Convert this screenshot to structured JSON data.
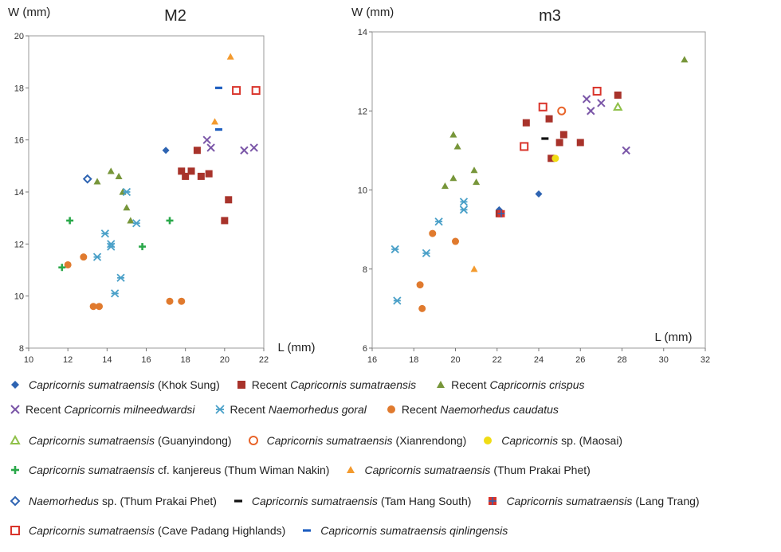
{
  "chart_data": [
    {
      "type": "scatter",
      "title": "M2",
      "ylabel": "W (mm)",
      "xlabel": "L (mm)",
      "xlim": [
        10,
        22
      ],
      "ylim": [
        8,
        20
      ],
      "xticks": [
        10,
        12,
        14,
        16,
        18,
        20,
        22
      ],
      "yticks": [
        8,
        10,
        12,
        14,
        16,
        18,
        20
      ],
      "series": [
        {
          "key": "khok",
          "points": [
            [
              17.0,
              15.6
            ]
          ]
        },
        {
          "key": "rec_csum",
          "points": [
            [
              17.8,
              14.8
            ],
            [
              18.0,
              14.6
            ],
            [
              18.3,
              14.8
            ],
            [
              18.6,
              15.6
            ],
            [
              18.8,
              14.6
            ],
            [
              19.2,
              14.7
            ],
            [
              20.2,
              13.7
            ],
            [
              20.0,
              12.9
            ]
          ]
        },
        {
          "key": "rec_cris",
          "points": [
            [
              13.5,
              14.4
            ],
            [
              14.2,
              14.8
            ],
            [
              14.6,
              14.6
            ],
            [
              14.8,
              14.0
            ],
            [
              15.0,
              13.4
            ],
            [
              15.2,
              12.9
            ]
          ]
        },
        {
          "key": "rec_miln",
          "points": [
            [
              19.1,
              16.0
            ],
            [
              19.3,
              15.7
            ],
            [
              21.0,
              15.6
            ],
            [
              21.5,
              15.7
            ]
          ]
        },
        {
          "key": "rec_goral",
          "points": [
            [
              13.5,
              11.5
            ],
            [
              13.9,
              12.4
            ],
            [
              14.2,
              12.0
            ],
            [
              14.2,
              11.9
            ],
            [
              14.4,
              10.1
            ],
            [
              14.7,
              10.7
            ],
            [
              15.0,
              14.0
            ],
            [
              15.5,
              12.8
            ]
          ]
        },
        {
          "key": "rec_caud",
          "points": [
            [
              12.0,
              11.2
            ],
            [
              12.8,
              11.5
            ],
            [
              13.3,
              9.6
            ],
            [
              13.6,
              9.6
            ],
            [
              17.2,
              9.8
            ],
            [
              17.8,
              9.8
            ]
          ]
        },
        {
          "key": "guany",
          "points": []
        },
        {
          "key": "xian",
          "points": []
        },
        {
          "key": "maosai",
          "points": []
        },
        {
          "key": "wiman",
          "points": [
            [
              11.7,
              11.1
            ],
            [
              12.1,
              12.9
            ],
            [
              15.8,
              11.9
            ],
            [
              17.2,
              12.9
            ]
          ]
        },
        {
          "key": "prakai",
          "points": [
            [
              19.5,
              16.7
            ],
            [
              20.3,
              19.2
            ]
          ]
        },
        {
          "key": "naem_sp",
          "points": [
            [
              13.0,
              14.5
            ]
          ]
        },
        {
          "key": "tamhang",
          "points": []
        },
        {
          "key": "langtrang",
          "points": []
        },
        {
          "key": "padang",
          "points": [
            [
              20.6,
              17.9
            ],
            [
              21.6,
              17.9
            ]
          ]
        },
        {
          "key": "qinling",
          "points": [
            [
              19.7,
              18.0
            ],
            [
              19.7,
              16.4
            ]
          ]
        }
      ]
    },
    {
      "type": "scatter",
      "title": "m3",
      "ylabel": "W (mm)",
      "xlabel": "L (mm)",
      "xlim": [
        16,
        32
      ],
      "ylim": [
        6,
        14
      ],
      "xticks": [
        16,
        18,
        20,
        22,
        24,
        26,
        28,
        30,
        32
      ],
      "yticks": [
        6,
        8,
        10,
        12,
        14
      ],
      "series": [
        {
          "key": "khok",
          "points": [
            [
              22.1,
              9.5
            ],
            [
              24.0,
              9.9
            ]
          ]
        },
        {
          "key": "rec_csum",
          "points": [
            [
              22.1,
              9.4
            ],
            [
              23.4,
              11.7
            ],
            [
              24.5,
              11.8
            ],
            [
              24.6,
              10.8
            ],
            [
              25.0,
              11.2
            ],
            [
              25.2,
              11.4
            ],
            [
              26.0,
              11.2
            ],
            [
              27.8,
              12.4
            ]
          ]
        },
        {
          "key": "rec_cris",
          "points": [
            [
              19.5,
              10.1
            ],
            [
              19.9,
              10.3
            ],
            [
              19.9,
              11.4
            ],
            [
              20.1,
              11.1
            ],
            [
              20.9,
              10.5
            ],
            [
              21.0,
              10.2
            ],
            [
              31.0,
              13.3
            ]
          ]
        },
        {
          "key": "rec_miln",
          "points": [
            [
              26.3,
              12.3
            ],
            [
              26.5,
              12.0
            ],
            [
              27.0,
              12.2
            ],
            [
              28.2,
              11.0
            ]
          ]
        },
        {
          "key": "rec_goral",
          "points": [
            [
              17.1,
              8.5
            ],
            [
              17.2,
              7.2
            ],
            [
              18.6,
              8.4
            ],
            [
              19.2,
              9.2
            ],
            [
              20.4,
              9.7
            ],
            [
              20.4,
              9.5
            ]
          ]
        },
        {
          "key": "rec_caud",
          "points": [
            [
              18.3,
              7.6
            ],
            [
              18.4,
              7.0
            ],
            [
              18.9,
              8.9
            ],
            [
              20.0,
              8.7
            ]
          ]
        },
        {
          "key": "guany",
          "points": [
            [
              27.8,
              12.1
            ]
          ]
        },
        {
          "key": "xian",
          "points": [
            [
              25.1,
              12.0
            ]
          ]
        },
        {
          "key": "maosai",
          "points": [
            [
              24.8,
              10.8
            ]
          ]
        },
        {
          "key": "wiman",
          "points": []
        },
        {
          "key": "prakai",
          "points": [
            [
              20.9,
              8.0
            ]
          ]
        },
        {
          "key": "naem_sp",
          "points": []
        },
        {
          "key": "tamhang",
          "points": [
            [
              24.3,
              11.3
            ]
          ]
        },
        {
          "key": "langtrang",
          "points": [
            [
              22.2,
              9.4
            ]
          ]
        },
        {
          "key": "padang",
          "points": [
            [
              23.3,
              11.1
            ],
            [
              24.2,
              12.1
            ],
            [
              26.8,
              12.5
            ]
          ]
        },
        {
          "key": "qinling",
          "points": []
        }
      ]
    }
  ],
  "legend": [
    {
      "key": "khok",
      "marker": "diamond",
      "color": "#2e64b2",
      "pre": "",
      "species": "Capricornis sumatraensis",
      "rest": "(Khok Sung)"
    },
    {
      "key": "rec_csum",
      "marker": "square",
      "color": "#a8332b",
      "pre": "Recent",
      "species": "Capricornis sumatraensis",
      "rest": ""
    },
    {
      "key": "rec_cris",
      "marker": "triangle",
      "color": "#77963a",
      "pre": "Recent",
      "species": "Capricornis crispus",
      "rest": ""
    },
    {
      "key": "rec_miln",
      "marker": "x",
      "color": "#7b57a8",
      "pre": "Recent",
      "species": "Capricornis milneedwardsi",
      "rest": ""
    },
    {
      "key": "rec_goral",
      "marker": "asterisk",
      "color": "#4aa0c8",
      "pre": "Recent",
      "species": "Naemorhedus goral",
      "rest": ""
    },
    {
      "key": "rec_caud",
      "marker": "circle",
      "color": "#e07a2e",
      "pre": "Recent",
      "species": "Naemorhedus caudatus",
      "rest": ""
    },
    {
      "key": "guany",
      "marker": "triangle-open",
      "color": "#8fc048",
      "pre": "",
      "species": "Capricornis sumatraensis",
      "rest": "(Guanyindong)"
    },
    {
      "key": "xian",
      "marker": "circle-open",
      "color": "#e8642a",
      "pre": "",
      "species": "Capricornis sumatraensis",
      "rest": "(Xianrendong)"
    },
    {
      "key": "maosai",
      "marker": "circle",
      "color": "#f0dc14",
      "pre": "",
      "species": "Capricornis",
      "rest": "sp. (Maosai)"
    },
    {
      "key": "wiman",
      "marker": "plus",
      "color": "#2aa84a",
      "pre": "",
      "species": "Capricornis sumatraensis",
      "rest": "cf. kanjereus (Thum Wiman Nakin)"
    },
    {
      "key": "prakai",
      "marker": "triangle",
      "color": "#f39a2e",
      "pre": "",
      "species": "Capricornis sumatraensis",
      "rest": "(Thum Prakai Phet)"
    },
    {
      "key": "naem_sp",
      "marker": "diamond-open",
      "color": "#2e64b2",
      "pre": "",
      "species": "Naemorhedus",
      "rest": "sp. (Thum Prakai Phet)"
    },
    {
      "key": "tamhang",
      "marker": "dash",
      "color": "#111111",
      "pre": "",
      "species": "Capricornis sumatraensis",
      "rest": "(Tam Hang South)"
    },
    {
      "key": "langtrang",
      "marker": "square-cross",
      "color": "#d9342b",
      "pre": "",
      "species": "Capricornis sumatraensis",
      "rest": "(Lang Trang)"
    },
    {
      "key": "padang",
      "marker": "square-open",
      "color": "#d9342b",
      "pre": "",
      "species": "Capricornis sumatraensis",
      "rest": "(Cave Padang Highlands)"
    },
    {
      "key": "qinling",
      "marker": "dash",
      "color": "#1f5fc0",
      "pre": "",
      "species": "Capricornis sumatraensis qinlingensis",
      "rest": ""
    }
  ],
  "legend_rows": [
    [
      "khok",
      "rec_csum",
      "rec_cris"
    ],
    [
      "rec_miln",
      "rec_goral",
      "rec_caud"
    ],
    [
      "guany",
      "xian",
      "maosai"
    ],
    [
      "wiman",
      "prakai"
    ],
    [
      "naem_sp",
      "tamhang",
      "langtrang"
    ],
    [
      "padang",
      "qinling"
    ]
  ]
}
